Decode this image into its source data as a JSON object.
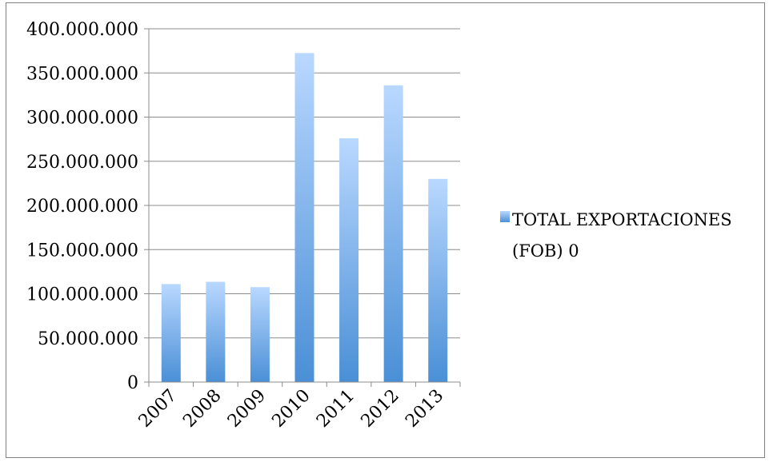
{
  "chart_data": {
    "type": "bar",
    "categories": [
      "2007",
      "2008",
      "2009",
      "2010",
      "2011",
      "2012",
      "2013"
    ],
    "series": [
      {
        "name": "TOTAL EXPORTACIONES (FOB) 0",
        "values": [
          111000000,
          113500000,
          107500000,
          372500000,
          276000000,
          336000000,
          230000000
        ]
      }
    ],
    "ylim": [
      0,
      400000000
    ],
    "y_ticks": [
      "0",
      "50.000.000",
      "100.000.000",
      "150.000.000",
      "200.000.000",
      "250.000.000",
      "300.000.000",
      "350.000.000",
      "400.000.000"
    ],
    "grid": true,
    "legend_position": "right",
    "legend_lines": [
      "TOTAL EXPORTACIONES",
      "(FOB) 0"
    ],
    "colors": {
      "bar_top": "#b9d8ff",
      "bar_bottom": "#4a8fd6",
      "grid": "#8c8c8c",
      "axis": "#8c8c8c"
    }
  }
}
